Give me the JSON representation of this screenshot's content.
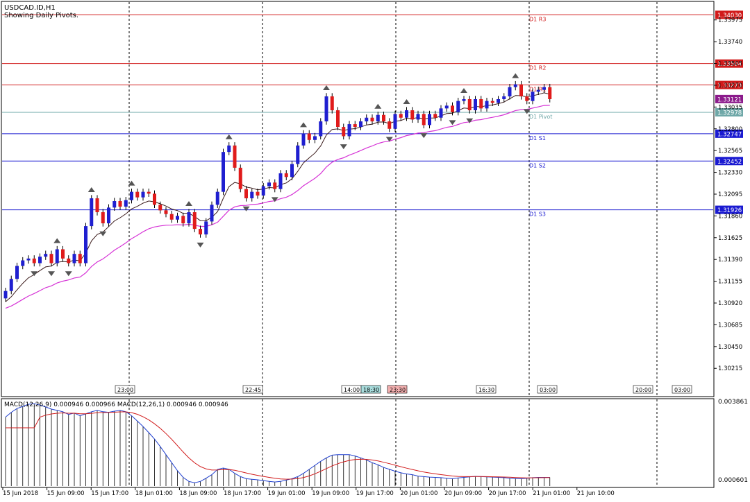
{
  "window": {
    "title": "USDCAD.ID,H1",
    "subtitle": "Showing Daily Pivots."
  },
  "macd": {
    "label": "MACD(12,26,9) 0.000946 0.000966 MACD(12,26,1) 0.000946 0.000946",
    "scale_top": "0.003861",
    "scale_bottom": "0.000601"
  },
  "colors": {
    "bull": "#1f1fd0",
    "bear": "#e01b1b",
    "resistance": "#d11a1a",
    "support": "#1a1ad1",
    "pivot": "#6fa8a8",
    "ma_fast": "#3a1a1a",
    "ma_slow": "#d633d6",
    "macd_line": "#1f3fd0",
    "macd_signal": "#d11a1a",
    "current_price": "#8b1a8b"
  },
  "chart_data": {
    "type": "candlestick",
    "symbol": "USDCAD.ID",
    "timeframe": "H1",
    "price_axis": {
      "range": [
        1.2991,
        1.34175
      ],
      "ticks": [
        "1.33975",
        "1.33740",
        "1.33505",
        "1.33270",
        "1.33035",
        "1.32800",
        "1.32565",
        "1.32330",
        "1.32095",
        "1.31860",
        "1.31625",
        "1.31390",
        "1.31155",
        "1.30920",
        "1.30685",
        "1.30450",
        "1.30215"
      ]
    },
    "pivot_levels": [
      {
        "name": "D1 R3",
        "value": 1.3403,
        "label": "1.34030",
        "kind": "resistance"
      },
      {
        "name": "D1 R2",
        "value": 1.33504,
        "label": "1.33504",
        "kind": "resistance"
      },
      {
        "name": "D1 R1",
        "value": 1.33273,
        "label": "1.33273",
        "kind": "resistance"
      },
      {
        "name": "D1 Pivot",
        "value": 1.32978,
        "label": "1.32978",
        "kind": "pivot"
      },
      {
        "name": "D1 S1",
        "value": 1.32747,
        "label": "1.32747",
        "kind": "support"
      },
      {
        "name": "D1 S2",
        "value": 1.32452,
        "label": "1.32452",
        "kind": "support"
      },
      {
        "name": "D1 S3",
        "value": 1.31926,
        "label": "1.31926",
        "kind": "support"
      }
    ],
    "current_price": {
      "value": 1.33121,
      "label": "1.33121"
    },
    "time_labels": [
      "15 Jun 2018",
      "15 Jun 09:00",
      "15 Jun 17:00",
      "18 Jun 01:00",
      "18 Jun 09:00",
      "18 Jun 17:00",
      "19 Jun 01:00",
      "19 Jun 09:00",
      "19 Jun 17:00",
      "20 Jun 01:00",
      "20 Jun 09:00",
      "20 Jun 17:00",
      "21 Jun 01:00",
      "21 Jun 10:00"
    ],
    "session_labels": [
      "23:00",
      "22:45",
      "14:00",
      "18:30",
      "23:30",
      "16:30",
      "03:00",
      "20:00",
      "03:00"
    ],
    "closes": [
      1.3105,
      1.3118,
      1.3132,
      1.3138,
      1.314,
      1.3135,
      1.3142,
      1.3145,
      1.3135,
      1.315,
      1.314,
      1.3135,
      1.3145,
      1.3135,
      1.3175,
      1.3205,
      1.319,
      1.3178,
      1.3195,
      1.3202,
      1.3196,
      1.3203,
      1.3212,
      1.3206,
      1.3212,
      1.321,
      1.3198,
      1.3192,
      1.3188,
      1.3182,
      1.3186,
      1.3178,
      1.319,
      1.3172,
      1.3166,
      1.318,
      1.3198,
      1.3212,
      1.3255,
      1.3262,
      1.3238,
      1.3215,
      1.3205,
      1.3212,
      1.3208,
      1.3218,
      1.3222,
      1.3215,
      1.3232,
      1.3228,
      1.3242,
      1.3262,
      1.3275,
      1.3268,
      1.3272,
      1.3288,
      1.3315,
      1.33,
      1.3282,
      1.3272,
      1.3285,
      1.3282,
      1.3288,
      1.3292,
      1.3288,
      1.3295,
      1.3288,
      1.328,
      1.3296,
      1.3292,
      1.33,
      1.329,
      1.3296,
      1.3284,
      1.3296,
      1.3292,
      1.3302,
      1.3305,
      1.3298,
      1.331,
      1.3312,
      1.33,
      1.3312,
      1.3302,
      1.331,
      1.3308,
      1.3312,
      1.3315,
      1.3325,
      1.3328,
      1.3315,
      1.331,
      1.332,
      1.3322,
      1.3325,
      1.3312
    ],
    "macd_histogram": [
      0.0032,
      0.00338,
      0.00352,
      0.0036,
      0.00368,
      0.0037,
      0.00365,
      0.00358,
      0.0035,
      0.00345,
      0.0034,
      0.0033,
      0.00335,
      0.00325,
      0.00332,
      0.0034,
      0.00345,
      0.0034,
      0.00338,
      0.00342,
      0.00345,
      0.0034,
      0.00325,
      0.00305,
      0.00285,
      0.00262,
      0.00238,
      0.0021,
      0.0018,
      0.0015,
      0.0012,
      0.00095,
      0.0008,
      0.00075,
      0.0008,
      0.00092,
      0.00105,
      0.00125,
      0.0013,
      0.00125,
      0.0011,
      0.00098,
      0.0009,
      0.00088,
      0.00086,
      0.00083,
      0.0008,
      0.00078,
      0.0008,
      0.00085,
      0.0009,
      0.00098,
      0.0011,
      0.00125,
      0.0014,
      0.00155,
      0.00168,
      0.00178,
      0.0018,
      0.0018,
      0.0018,
      0.00175,
      0.00168,
      0.0016,
      0.0015,
      0.00142,
      0.00132,
      0.00125,
      0.00118,
      0.00112,
      0.00108,
      0.00105,
      0.001,
      0.00098,
      0.00096,
      0.00095,
      0.00094,
      0.00092,
      0.0009,
      0.00093,
      0.00095,
      0.00097,
      0.00099,
      0.00098,
      0.00097,
      0.00096,
      0.00095,
      0.00094,
      0.00092,
      0.00091,
      0.0009,
      0.00092,
      0.00094,
      0.00095,
      0.00095,
      0.00095
    ]
  }
}
